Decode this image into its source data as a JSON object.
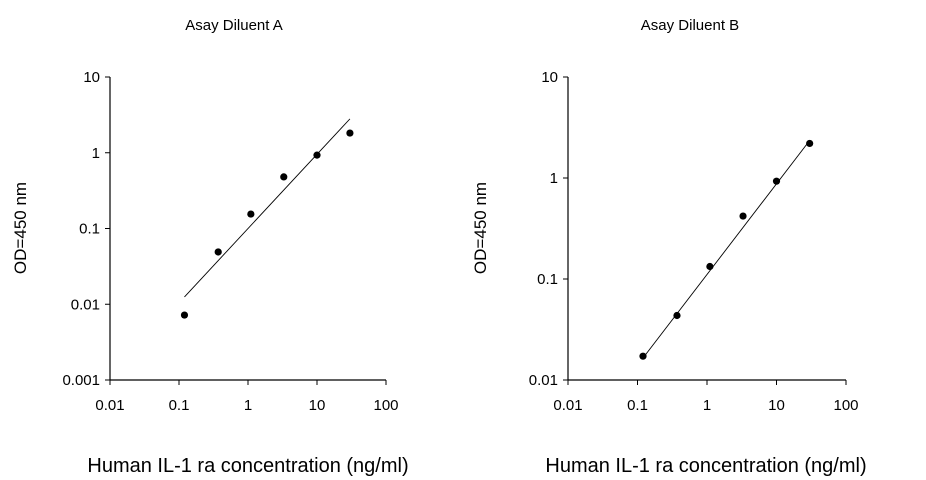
{
  "chart_data": [
    {
      "type": "scatter",
      "title": "Asay Diluent A",
      "xlabel": "Human IL-1 ra concentration (ng/ml)",
      "ylabel": "OD=450 nm",
      "x_scale": "log",
      "y_scale": "log",
      "xlim": [
        0.01,
        100
      ],
      "ylim": [
        0.001,
        10
      ],
      "x_ticks": [
        "0.01",
        "0.1",
        "1",
        "10",
        "100"
      ],
      "y_ticks": [
        "10",
        "1",
        "0.1",
        "0.01",
        "0.001"
      ],
      "grid": false,
      "points": [
        {
          "x": 0.12,
          "y": 0.0072
        },
        {
          "x": 0.37,
          "y": 0.049
        },
        {
          "x": 1.1,
          "y": 0.155
        },
        {
          "x": 3.3,
          "y": 0.48
        },
        {
          "x": 10,
          "y": 0.93
        },
        {
          "x": 30,
          "y": 1.82
        }
      ],
      "fit_line": [
        {
          "x": 0.12,
          "y": 0.0125
        },
        {
          "x": 30,
          "y": 2.8
        }
      ]
    },
    {
      "type": "scatter",
      "title": "Asay Diluent B",
      "xlabel": "Human IL-1 ra concentration (ng/ml)",
      "ylabel": "OD=450 nm",
      "x_scale": "log",
      "y_scale": "log",
      "xlim": [
        0.01,
        100
      ],
      "ylim": [
        0.01,
        10
      ],
      "x_ticks": [
        "0.01",
        "0.1",
        "1",
        "10",
        "100"
      ],
      "y_ticks": [
        "10",
        "1",
        "0.1",
        "0.01"
      ],
      "grid": false,
      "points": [
        {
          "x": 0.12,
          "y": 0.0172
        },
        {
          "x": 0.37,
          "y": 0.0435
        },
        {
          "x": 1.1,
          "y": 0.133
        },
        {
          "x": 3.3,
          "y": 0.42
        },
        {
          "x": 10,
          "y": 0.93
        },
        {
          "x": 30,
          "y": 2.2
        }
      ],
      "fit_line": [
        {
          "x": 0.12,
          "y": 0.0165
        },
        {
          "x": 30,
          "y": 2.35
        }
      ]
    }
  ]
}
